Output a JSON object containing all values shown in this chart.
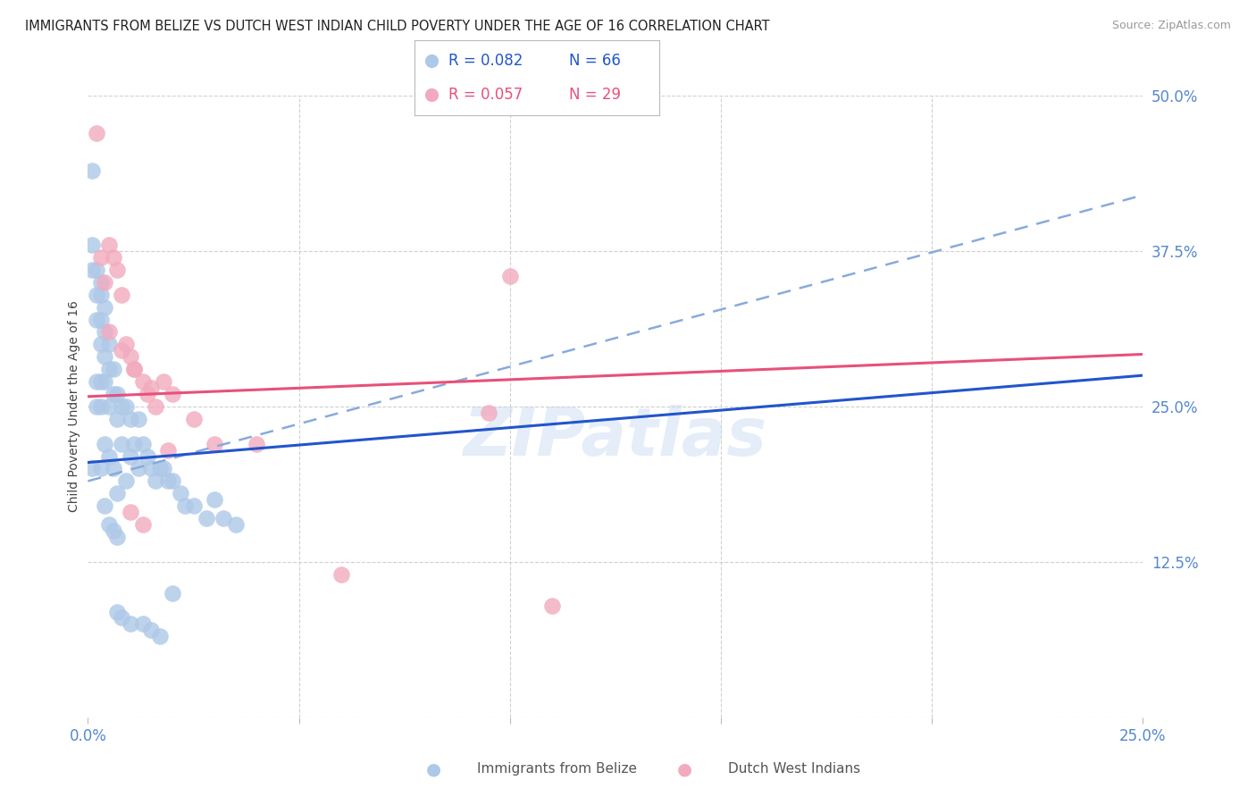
{
  "title": "IMMIGRANTS FROM BELIZE VS DUTCH WEST INDIAN CHILD POVERTY UNDER THE AGE OF 16 CORRELATION CHART",
  "source": "Source: ZipAtlas.com",
  "ylabel": "Child Poverty Under the Age of 16",
  "xlim": [
    0.0,
    0.25
  ],
  "ylim": [
    0.0,
    0.5
  ],
  "xtick_vals": [
    0.0,
    0.05,
    0.1,
    0.15,
    0.2,
    0.25
  ],
  "xtick_labels": [
    "0.0%",
    "",
    "",
    "",
    "",
    "25.0%"
  ],
  "ytick_vals": [
    0.0,
    0.125,
    0.25,
    0.375,
    0.5
  ],
  "ytick_labels": [
    "",
    "12.5%",
    "25.0%",
    "37.5%",
    "50.0%"
  ],
  "belize_color": "#adc8e8",
  "dutch_color": "#f2aabe",
  "belize_line_color": "#2255cc",
  "dutch_line_color": "#e8507a",
  "dash_line_color": "#88aadd",
  "watermark": "ZIPatlas",
  "bg_color": "#ffffff",
  "grid_color": "#d0d0d0",
  "tick_label_color": "#5588cc",
  "belize_x": [
    0.001,
    0.001,
    0.001,
    0.001,
    0.002,
    0.002,
    0.002,
    0.002,
    0.002,
    0.003,
    0.003,
    0.003,
    0.003,
    0.003,
    0.003,
    0.004,
    0.004,
    0.004,
    0.004,
    0.004,
    0.005,
    0.005,
    0.005,
    0.005,
    0.006,
    0.006,
    0.006,
    0.007,
    0.007,
    0.007,
    0.008,
    0.008,
    0.009,
    0.009,
    0.01,
    0.01,
    0.011,
    0.012,
    0.012,
    0.013,
    0.014,
    0.015,
    0.016,
    0.017,
    0.018,
    0.019,
    0.02,
    0.022,
    0.023,
    0.025,
    0.028,
    0.03,
    0.032,
    0.035,
    0.003,
    0.004,
    0.005,
    0.006,
    0.007,
    0.007,
    0.008,
    0.01,
    0.013,
    0.015,
    0.017,
    0.02
  ],
  "belize_y": [
    0.44,
    0.38,
    0.36,
    0.2,
    0.36,
    0.34,
    0.32,
    0.27,
    0.25,
    0.35,
    0.34,
    0.32,
    0.3,
    0.27,
    0.25,
    0.33,
    0.31,
    0.29,
    0.27,
    0.22,
    0.3,
    0.28,
    0.25,
    0.21,
    0.28,
    0.26,
    0.2,
    0.26,
    0.24,
    0.18,
    0.25,
    0.22,
    0.25,
    0.19,
    0.24,
    0.21,
    0.22,
    0.24,
    0.2,
    0.22,
    0.21,
    0.2,
    0.19,
    0.2,
    0.2,
    0.19,
    0.19,
    0.18,
    0.17,
    0.17,
    0.16,
    0.175,
    0.16,
    0.155,
    0.2,
    0.17,
    0.155,
    0.15,
    0.145,
    0.085,
    0.08,
    0.075,
    0.075,
    0.07,
    0.065,
    0.1
  ],
  "dutch_x": [
    0.002,
    0.003,
    0.004,
    0.005,
    0.006,
    0.007,
    0.008,
    0.009,
    0.01,
    0.011,
    0.013,
    0.014,
    0.016,
    0.018,
    0.02,
    0.025,
    0.03,
    0.04,
    0.005,
    0.008,
    0.011,
    0.015,
    0.019,
    0.01,
    0.013,
    0.1,
    0.095,
    0.11,
    0.06
  ],
  "dutch_y": [
    0.47,
    0.37,
    0.35,
    0.38,
    0.37,
    0.36,
    0.34,
    0.3,
    0.29,
    0.28,
    0.27,
    0.26,
    0.25,
    0.27,
    0.26,
    0.24,
    0.22,
    0.22,
    0.31,
    0.295,
    0.28,
    0.265,
    0.215,
    0.165,
    0.155,
    0.355,
    0.245,
    0.09,
    0.115
  ],
  "belize_trend": [
    0.0,
    0.25,
    0.205,
    0.275
  ],
  "dutch_trend": [
    0.0,
    0.25,
    0.258,
    0.292
  ],
  "dash_trend": [
    0.0,
    0.25,
    0.19,
    0.42
  ],
  "legend_items": [
    {
      "r": "R = 0.082",
      "n": "N = 66",
      "dot_color": "#adc8e8",
      "text_color": "#2255cc"
    },
    {
      "r": "R = 0.057",
      "n": "N = 29",
      "dot_color": "#f2aabe",
      "text_color": "#e8507a"
    }
  ],
  "bottom_legend": [
    {
      "label": "Immigrants from Belize",
      "color": "#adc8e8"
    },
    {
      "label": "Dutch West Indians",
      "color": "#f2aabe"
    }
  ]
}
